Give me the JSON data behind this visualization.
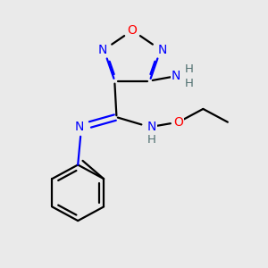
{
  "background_color": "#eaeaea",
  "atom_colors": {
    "C": "#000000",
    "N": "#0000ff",
    "O": "#ff0000",
    "H": "#507070"
  },
  "figsize": [
    3.0,
    3.0
  ],
  "dpi": 100,
  "lw": 1.6,
  "fontsize": 10
}
